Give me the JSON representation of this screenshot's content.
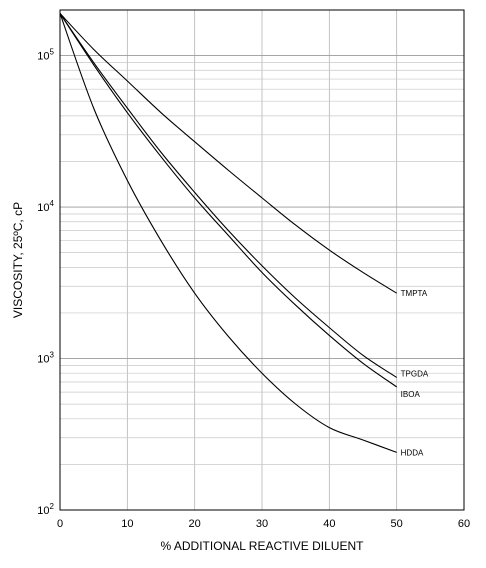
{
  "chart_data": {
    "type": "line",
    "xlabel": "% ADDITIONAL REACTIVE DILUENT",
    "ylabel": "VISCOSITY, 25ºC, cP",
    "xlim": [
      0,
      60
    ],
    "ylim": [
      100,
      200000
    ],
    "y_scale": "log",
    "grid": true,
    "x_ticks": [
      "0",
      "10",
      "20",
      "30",
      "40",
      "50",
      "60"
    ],
    "y_ticks": [
      {
        "base": "10",
        "exp": "2"
      },
      {
        "base": "10",
        "exp": "3"
      },
      {
        "base": "10",
        "exp": "4"
      },
      {
        "base": "10",
        "exp": "5"
      }
    ],
    "series": [
      {
        "name": "TMPTA",
        "x": [
          0,
          5,
          10,
          15,
          20,
          25,
          30,
          35,
          40,
          45,
          50
        ],
        "values": [
          190000,
          110000,
          68000,
          42000,
          27000,
          17500,
          11500,
          7600,
          5200,
          3700,
          2700
        ]
      },
      {
        "name": "TPGDA",
        "x": [
          0,
          5,
          10,
          15,
          20,
          25,
          30,
          35,
          40,
          45,
          50
        ],
        "values": [
          190000,
          90000,
          45000,
          23000,
          12500,
          7000,
          4100,
          2500,
          1600,
          1050,
          750
        ]
      },
      {
        "name": "IBOA",
        "x": [
          0,
          5,
          10,
          15,
          20,
          25,
          30,
          35,
          40,
          45,
          50
        ],
        "values": [
          190000,
          87000,
          42000,
          21500,
          11500,
          6500,
          3700,
          2250,
          1420,
          930,
          650
        ]
      },
      {
        "name": "HDDA",
        "x": [
          0,
          5,
          10,
          15,
          20,
          25,
          30,
          35,
          40,
          45,
          50
        ],
        "values": [
          190000,
          45000,
          15000,
          6000,
          2700,
          1400,
          800,
          500,
          350,
          290,
          240
        ]
      }
    ]
  }
}
